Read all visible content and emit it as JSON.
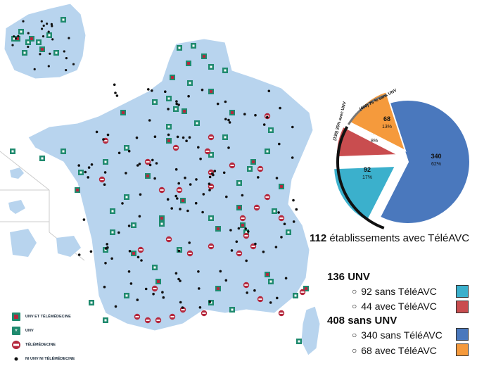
{
  "legend": {
    "items": [
      {
        "label": "UNV et Télémédecine",
        "icon": "unv-telemedecine-icon"
      },
      {
        "label": "UNV",
        "icon": "unv-icon"
      },
      {
        "label": "Télémédecine",
        "icon": "telemedecine-icon"
      },
      {
        "label": "Ni UNV ni Télémédecine",
        "icon": "dot-icon"
      }
    ]
  },
  "pie": {
    "arc_labels": {
      "with_unv": "(136) 25% avec UNV",
      "without_unv": "(408) 75 % sans UNV"
    },
    "slices": [
      {
        "value": "340",
        "pct": "62%",
        "fraction": 0.625,
        "color": "#4a78bd"
      },
      {
        "value": "92",
        "pct": "17%",
        "fraction": 0.169,
        "color": "#3bb0cc"
      },
      {
        "value": "44",
        "pct": "8%",
        "fraction": 0.081,
        "color": "#c94d4f"
      },
      {
        "value": "68",
        "pct": "13%",
        "fraction": 0.125,
        "color": "#f59a3c"
      }
    ]
  },
  "summary": {
    "count": "112",
    "text": "établissements avec TéléAVC"
  },
  "groups": {
    "unv": {
      "title": "136 UNV",
      "items": [
        {
          "text": "92  sans TéléAVC",
          "color": "#3bb0cc"
        },
        {
          "text": "44  avec TéléAVC",
          "color": "#c94d4f"
        }
      ]
    },
    "sans_unv": {
      "title": "408 sans UNV",
      "items": [
        {
          "text": "340 sans TéléAVC",
          "color": "#4a78bd"
        },
        {
          "text": "68   avec TéléAVC",
          "color": "#f59a3c"
        }
      ]
    }
  },
  "colors": {
    "land": "#b8d4ee",
    "border": "#ffffff",
    "unv_green": "#1f8a6e",
    "tele_red": "#b5283d",
    "dot": "#111111"
  }
}
